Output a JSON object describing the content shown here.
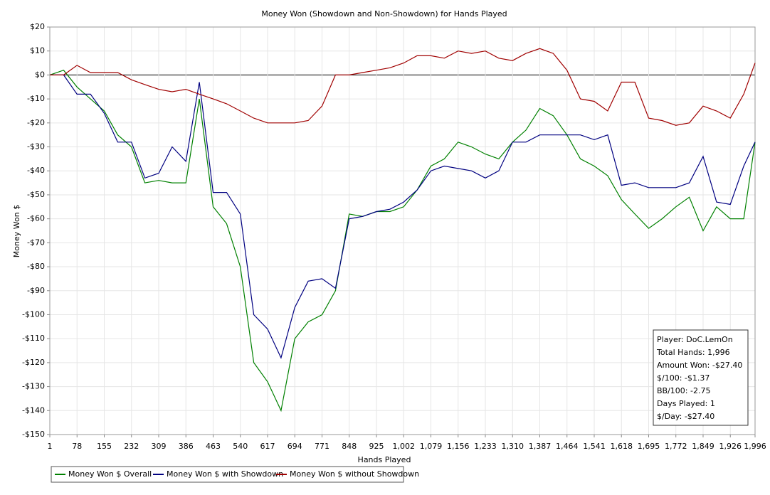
{
  "chart_data": {
    "type": "line",
    "title": "Money Won (Showdown and Non-Showdown) for Hands Played",
    "x_label": "Hands Played",
    "y_label": "Money Won $",
    "x": [
      1,
      40,
      78,
      116,
      155,
      193,
      232,
      270,
      309,
      347,
      386,
      424,
      463,
      501,
      540,
      578,
      617,
      655,
      694,
      732,
      771,
      809,
      848,
      886,
      925,
      963,
      1002,
      1040,
      1079,
      1117,
      1156,
      1194,
      1233,
      1271,
      1310,
      1348,
      1387,
      1425,
      1464,
      1502,
      1541,
      1579,
      1618,
      1656,
      1695,
      1733,
      1772,
      1810,
      1849,
      1887,
      1926,
      1964,
      1996
    ],
    "series": [
      {
        "name": "Money Won $ Overall",
        "color": "#008000",
        "values": [
          0,
          2,
          -5,
          -10,
          -15,
          -25,
          -30,
          -45,
          -44,
          -45,
          -45,
          -10,
          -55,
          -62,
          -80,
          -120,
          -128,
          -140,
          -110,
          -103,
          -100,
          -90,
          -58,
          -59,
          -57,
          -57,
          -55,
          -48,
          -38,
          -35,
          -28,
          -30,
          -33,
          -35,
          -28,
          -23,
          -14,
          -17,
          -25,
          -35,
          -38,
          -42,
          -52,
          -58,
          -64,
          -60,
          -55,
          -51,
          -65,
          -55,
          -60,
          -60,
          -28
        ]
      },
      {
        "name": "Money Won $ with Showdown",
        "color": "#000080",
        "values": [
          0,
          0,
          -8,
          -8,
          -16,
          -28,
          -28,
          -43,
          -41,
          -30,
          -36,
          -3,
          -49,
          -49,
          -58,
          -100,
          -106,
          -118,
          -97,
          -86,
          -85,
          -89,
          -60,
          -59,
          -57,
          -56,
          -53,
          -48,
          -40,
          -38,
          -39,
          -40,
          -43,
          -40,
          -28,
          -28,
          -25,
          -25,
          -25,
          -25,
          -27,
          -25,
          -46,
          -45,
          -47,
          -47,
          -47,
          -45,
          -34,
          -53,
          -54,
          -38,
          -28
        ]
      },
      {
        "name": "Money Won $ without Showdown",
        "color": "#a00000",
        "values": [
          0,
          0,
          4,
          1,
          1,
          1,
          -2,
          -4,
          -6,
          -7,
          -6,
          -8,
          -10,
          -12,
          -15,
          -18,
          -20,
          -20,
          -20,
          -19,
          -13,
          0,
          0,
          1,
          2,
          3,
          5,
          8,
          8,
          7,
          10,
          9,
          10,
          7,
          6,
          9,
          11,
          9,
          2,
          -10,
          -11,
          -15,
          -3,
          -3,
          -18,
          -19,
          -21,
          -20,
          -13,
          -15,
          -18,
          -8,
          5
        ]
      }
    ],
    "xlim": [
      1,
      1996
    ],
    "xticks": [
      1,
      78,
      155,
      232,
      309,
      386,
      463,
      540,
      617,
      694,
      771,
      848,
      925,
      {
        "value": 1002,
        "label": "1,002"
      },
      {
        "value": 1079,
        "label": "1,079"
      },
      {
        "value": 1156,
        "label": "1,156"
      },
      {
        "value": 1233,
        "label": "1,233"
      },
      {
        "value": 1310,
        "label": "1,310"
      },
      {
        "value": 1387,
        "label": "1,387"
      },
      {
        "value": 1464,
        "label": "1,464"
      },
      {
        "value": 1541,
        "label": "1,541"
      },
      {
        "value": 1618,
        "label": "1,618"
      },
      {
        "value": 1695,
        "label": "1,695"
      },
      {
        "value": 1772,
        "label": "1,772"
      },
      {
        "value": 1849,
        "label": "1,849"
      },
      {
        "value": 1926,
        "label": "1,926"
      },
      {
        "value": 1996,
        "label": "1,996"
      }
    ],
    "ylim": [
      -150,
      20
    ],
    "yticks": [
      {
        "value": 20,
        "label": "$20"
      },
      {
        "value": 10,
        "label": "$10"
      },
      {
        "value": 0,
        "label": "$0"
      },
      {
        "value": -10,
        "label": "-$10"
      },
      {
        "value": -20,
        "label": "-$20"
      },
      {
        "value": -30,
        "label": "-$30"
      },
      {
        "value": -40,
        "label": "-$40"
      },
      {
        "value": -50,
        "label": "-$50"
      },
      {
        "value": -60,
        "label": "-$60"
      },
      {
        "value": -70,
        "label": "-$70"
      },
      {
        "value": -80,
        "label": "-$80"
      },
      {
        "value": -90,
        "label": "-$90"
      },
      {
        "value": -100,
        "label": "-$100"
      },
      {
        "value": -110,
        "label": "-$110"
      },
      {
        "value": -120,
        "label": "-$120"
      },
      {
        "value": -130,
        "label": "-$130"
      },
      {
        "value": -140,
        "label": "-$140"
      },
      {
        "value": -150,
        "label": "-$150"
      }
    ],
    "grid": true,
    "annotations": [
      "Player: DoC.LemOn",
      "Total Hands: 1,996",
      "Amount Won: -$27.40",
      "$/100: -$1.37",
      "BB/100: -2.75",
      "Days Played: 1",
      "$/Day: -$27.40"
    ]
  }
}
